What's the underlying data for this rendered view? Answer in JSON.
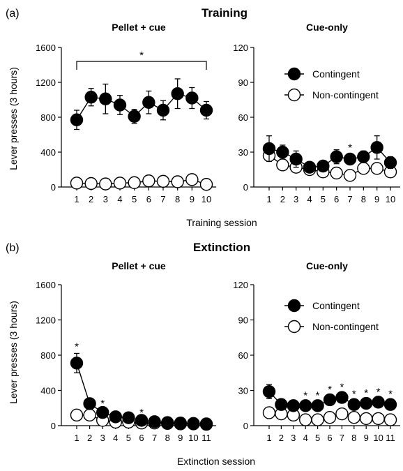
{
  "figure": {
    "panel_a_label": "(a)",
    "panel_b_label": "(b)",
    "section_a_title": "Training",
    "section_b_title": "Extinction",
    "y_axis_label": "Lever presses (3 hours)",
    "x_axis_label_a": "Training session",
    "x_axis_label_b": "Extinction session"
  },
  "chart_data": [
    {
      "id": "a-left",
      "type": "line",
      "title": "Pellet + cue",
      "xlabel": "Training session",
      "ylabel": "Lever presses (3 hours)",
      "x": [
        1,
        2,
        3,
        4,
        5,
        6,
        7,
        8,
        9,
        10
      ],
      "ylim": [
        0,
        1600
      ],
      "yticks": [
        0,
        400,
        800,
        1200,
        1600
      ],
      "series": [
        {
          "name": "Contingent",
          "marker": "filled",
          "values": [
            770,
            1030,
            1010,
            940,
            810,
            970,
            880,
            1070,
            1020,
            880
          ],
          "errors": [
            110,
            100,
            170,
            110,
            80,
            130,
            110,
            170,
            120,
            100
          ]
        },
        {
          "name": "Non-contingent",
          "marker": "open",
          "values": [
            45,
            40,
            35,
            45,
            50,
            70,
            65,
            60,
            85,
            30
          ],
          "errors": [
            0,
            0,
            0,
            0,
            0,
            0,
            0,
            0,
            0,
            0
          ]
        }
      ],
      "bracket": {
        "from": 1,
        "to": 10,
        "label": "*"
      },
      "significance": []
    },
    {
      "id": "a-right",
      "type": "line",
      "title": "Cue-only",
      "xlabel": "Training session",
      "ylabel": "",
      "x": [
        1,
        2,
        3,
        4,
        5,
        6,
        7,
        8,
        9,
        10
      ],
      "ylim": [
        0,
        120
      ],
      "yticks": [
        0,
        30,
        60,
        90,
        120
      ],
      "legend": {
        "position": "top-right",
        "entries": [
          "Contingent",
          "Non-contingent"
        ]
      },
      "series": [
        {
          "name": "Contingent",
          "marker": "filled",
          "values": [
            33,
            30,
            24,
            17,
            18,
            26,
            24,
            26,
            34,
            21
          ],
          "errors": [
            11,
            6,
            7,
            3,
            3,
            6,
            4,
            5,
            10,
            5
          ]
        },
        {
          "name": "Non-contingent",
          "marker": "open",
          "values": [
            27,
            19,
            17,
            15,
            13,
            12,
            10,
            16,
            16,
            13
          ],
          "errors": [
            4,
            3,
            4,
            2,
            2,
            3,
            2,
            3,
            4,
            3
          ]
        }
      ],
      "significance": [
        {
          "x": 7,
          "label": "*"
        }
      ]
    },
    {
      "id": "b-left",
      "type": "line",
      "title": "Pellet + cue",
      "xlabel": "Extinction session",
      "ylabel": "Lever presses (3 hours)",
      "x": [
        1,
        2,
        3,
        4,
        5,
        6,
        7,
        8,
        9,
        10,
        11
      ],
      "ylim": [
        0,
        1600
      ],
      "yticks": [
        0,
        400,
        800,
        1200,
        1600
      ],
      "series": [
        {
          "name": "Contingent",
          "marker": "filled",
          "values": [
            710,
            250,
            150,
            100,
            90,
            60,
            45,
            35,
            30,
            25,
            20
          ],
          "errors": [
            110,
            30,
            25,
            20,
            15,
            12,
            10,
            8,
            8,
            6,
            5
          ]
        },
        {
          "name": "Non-contingent",
          "marker": "open",
          "values": [
            120,
            120,
            60,
            40,
            40,
            30,
            30,
            25,
            20,
            20,
            15
          ],
          "errors": [
            0,
            0,
            0,
            0,
            0,
            0,
            0,
            0,
            0,
            0,
            0
          ]
        }
      ],
      "significance": [
        {
          "x": 1,
          "label": "*"
        },
        {
          "x": 3,
          "label": "*"
        },
        {
          "x": 6,
          "label": "*"
        }
      ]
    },
    {
      "id": "b-right",
      "type": "line",
      "title": "Cue-only",
      "xlabel": "Extinction session",
      "ylabel": "",
      "x": [
        1,
        2,
        3,
        4,
        5,
        6,
        7,
        8,
        9,
        10,
        11
      ],
      "ylim": [
        0,
        120
      ],
      "yticks": [
        0,
        30,
        60,
        90,
        120
      ],
      "legend": {
        "position": "top-right",
        "entries": [
          "Contingent",
          "Non-contingent"
        ]
      },
      "series": [
        {
          "name": "Contingent",
          "marker": "filled",
          "values": [
            29,
            18,
            17,
            17,
            17,
            22,
            24,
            18,
            19,
            20,
            18
          ],
          "errors": [
            6,
            3,
            3,
            3,
            3,
            3,
            3,
            3,
            3,
            3,
            3
          ]
        },
        {
          "name": "Non-contingent",
          "marker": "open",
          "values": [
            11,
            10,
            9,
            5,
            5,
            7,
            10,
            7,
            6,
            6,
            5
          ],
          "errors": [
            3,
            3,
            3,
            2,
            2,
            2,
            3,
            2,
            2,
            2,
            2
          ]
        }
      ],
      "significance": [
        {
          "x": 4,
          "label": "*"
        },
        {
          "x": 5,
          "label": "*"
        },
        {
          "x": 6,
          "label": "*"
        },
        {
          "x": 7,
          "label": "*"
        },
        {
          "x": 8,
          "label": "*"
        },
        {
          "x": 9,
          "label": "*"
        },
        {
          "x": 10,
          "label": "*"
        },
        {
          "x": 11,
          "label": "*"
        }
      ]
    }
  ]
}
